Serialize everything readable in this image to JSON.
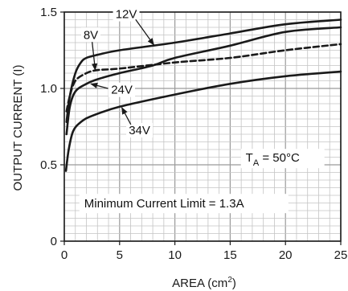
{
  "chart_data": {
    "type": "line",
    "xlabel": "AREA (cm²)",
    "ylabel": "OUTPUT CURRENT (I)",
    "xlim": [
      0,
      25
    ],
    "ylim": [
      0,
      1.5
    ],
    "x_ticks": [
      "0",
      "5",
      "10",
      "15",
      "20",
      "25"
    ],
    "y_ticks": [
      "0",
      "0.5",
      "1.0",
      "1.5"
    ],
    "grid": true,
    "minor_grid_x_step": 1,
    "minor_grid_y_step": 0.05,
    "series": [
      {
        "name": "12V",
        "style": "solid",
        "points": [
          [
            0.2,
            0.78
          ],
          [
            0.5,
            0.95
          ],
          [
            1,
            1.1
          ],
          [
            1.5,
            1.17
          ],
          [
            2,
            1.2
          ],
          [
            3,
            1.22
          ],
          [
            5,
            1.25
          ],
          [
            10,
            1.3
          ],
          [
            15,
            1.36
          ],
          [
            20,
            1.42
          ],
          [
            25,
            1.45
          ]
        ]
      },
      {
        "name": "8V",
        "style": "dashed",
        "points": [
          [
            0.2,
            0.85
          ],
          [
            0.5,
            0.95
          ],
          [
            1,
            1.05
          ],
          [
            2,
            1.1
          ],
          [
            3,
            1.12
          ],
          [
            5,
            1.13
          ],
          [
            10,
            1.17
          ],
          [
            15,
            1.2
          ],
          [
            20,
            1.25
          ],
          [
            25,
            1.29
          ]
        ]
      },
      {
        "name": "24V",
        "style": "solid",
        "points": [
          [
            0.2,
            0.7
          ],
          [
            0.5,
            0.88
          ],
          [
            1,
            0.98
          ],
          [
            2,
            1.03
          ],
          [
            3,
            1.06
          ],
          [
            5,
            1.1
          ],
          [
            8,
            1.15
          ],
          [
            10,
            1.2
          ],
          [
            15,
            1.28
          ],
          [
            20,
            1.37
          ],
          [
            25,
            1.4
          ]
        ]
      },
      {
        "name": "34V",
        "style": "solid",
        "points": [
          [
            0.15,
            0.46
          ],
          [
            0.4,
            0.6
          ],
          [
            0.8,
            0.72
          ],
          [
            1.5,
            0.78
          ],
          [
            2.5,
            0.82
          ],
          [
            5,
            0.88
          ],
          [
            10,
            0.96
          ],
          [
            15,
            1.03
          ],
          [
            20,
            1.08
          ],
          [
            25,
            1.11
          ]
        ]
      }
    ],
    "annotations": {
      "temperature": "T",
      "temperature_sub": "A",
      "temperature_rest": " = 50°C",
      "limit_note": "Minimum Current Limit = 1.3A"
    },
    "series_label_positions": [
      {
        "series": "12V",
        "label_at": [
          5.6,
          1.46
        ],
        "arrow_to": [
          8.1,
          1.285
        ]
      },
      {
        "series": "8V",
        "label_at": [
          2.4,
          1.325
        ],
        "arrow_to": [
          2.8,
          1.12
        ]
      },
      {
        "series": "24V",
        "label_at": [
          5.2,
          0.965
        ],
        "arrow_to": [
          2.4,
          1.03
        ]
      },
      {
        "series": "34V",
        "label_at": [
          6.8,
          0.7
        ],
        "arrow_to": [
          5.2,
          0.875
        ]
      }
    ],
    "colors": {
      "line": "#1a1a1a",
      "grid": "#c4c4c4",
      "background": "#ffffff"
    }
  }
}
